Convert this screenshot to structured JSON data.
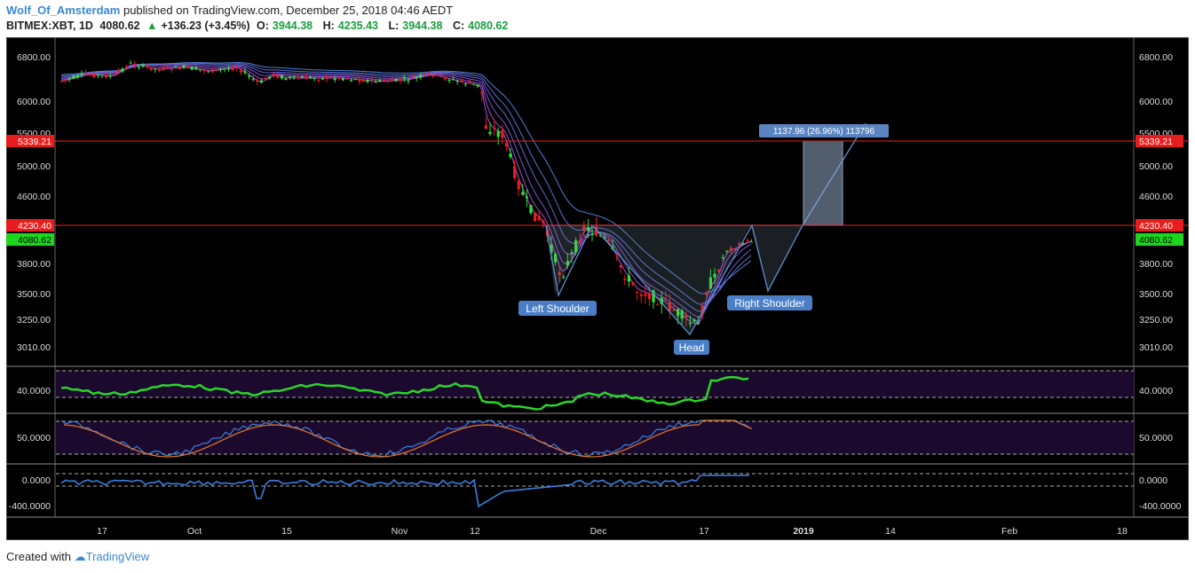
{
  "header": {
    "author": "Wolf_Of_Amsterdam",
    "published": "published on TradingView.com, December 25, 2018 04:46 AEDT",
    "symbol": "BITMEX:XBT, 1D",
    "price": "4080.62",
    "change": "+136.23 (+3.45%)",
    "o_label": "O:",
    "o_value": "3944.38",
    "h_label": "H:",
    "h_value": "4235.43",
    "l_label": "L:",
    "l_value": "3944.38",
    "c_label": "C:",
    "c_value": "4080.62"
  },
  "colors": {
    "bull": "#2ee82e",
    "bear": "#e81c1c",
    "level": "#e82020",
    "pattern": "#5a8fd6",
    "rsi": "#29d629",
    "panel_bg": "#1c0a2e"
  },
  "price_axis": {
    "ticks": [
      "6800.00",
      "6000.00",
      "5500.00",
      "5000.00",
      "4600.00",
      "3800.00",
      "3500.00",
      "3250.00",
      "3010.00"
    ],
    "level_high": "5339.21",
    "level_mid": "4230.40",
    "last": "4080.62"
  },
  "annotations": {
    "left_shoulder": "Left Shoulder",
    "head": "Head",
    "right_shoulder": "Right Shoulder",
    "measure": "1137.96 (26.96%) 113796"
  },
  "rsi": {
    "tick": "40.0000"
  },
  "stoch": {
    "tick": "50.0000"
  },
  "osc": {
    "ticks": [
      "0.0000",
      "-400.0000"
    ]
  },
  "time_axis": [
    "17",
    "Oct",
    "15",
    "Nov",
    "12",
    "Dec",
    "17",
    "2019",
    "14",
    "Feb",
    "18"
  ],
  "footer": {
    "created": "Created with",
    "brand": "TradingView"
  }
}
